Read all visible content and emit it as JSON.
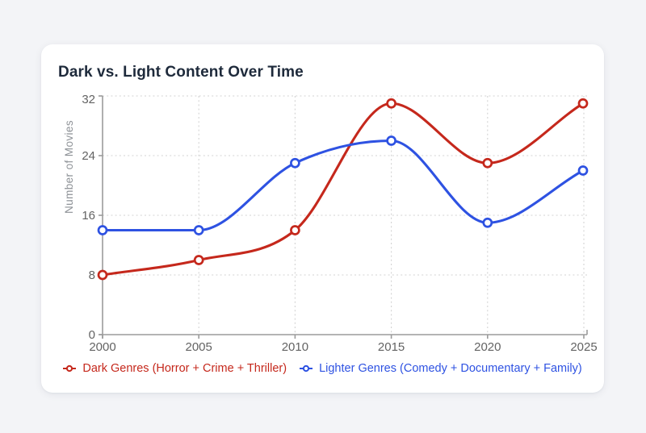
{
  "page": {
    "background_color": "#f3f4f7",
    "card_background_color": "#ffffff"
  },
  "chart_data": {
    "type": "line",
    "title": "Dark vs. Light Content Over Time",
    "xlabel": "",
    "ylabel": "Number of Movies",
    "x": [
      2000,
      2005,
      2010,
      2015,
      2020,
      2025
    ],
    "x_tick_labels": [
      "2000",
      "2005",
      "2010",
      "2015",
      "2020",
      "2025"
    ],
    "y_ticks": [
      0,
      8,
      16,
      24,
      32
    ],
    "ylim": [
      0,
      32
    ],
    "grid": "dotted",
    "curve": "monotone",
    "marker": "open-circle",
    "legend_position": "bottom",
    "axis_color": "#9b9b9b",
    "grid_color": "#d3d3d3",
    "tick_label_color": "#636363",
    "axis_title_color": "#8e9297",
    "series": [
      {
        "name": "Dark Genres (Horror + Crime + Thriller)",
        "color": "#c5281c",
        "values": [
          8,
          10,
          14,
          31,
          23,
          31
        ]
      },
      {
        "name": "Lighter Genres (Comedy + Documentary + Family)",
        "color": "#2e52e2",
        "values": [
          14,
          14,
          23,
          26,
          15,
          22
        ]
      }
    ]
  }
}
